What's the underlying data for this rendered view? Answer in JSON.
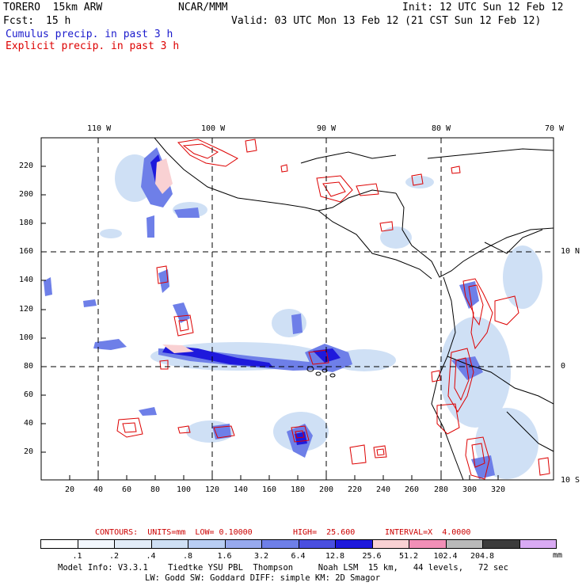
{
  "header": {
    "model": "TORERO  15km ARW",
    "center": "NCAR/MMM",
    "init": "Init: 12 UTC Sun 12 Feb 12",
    "fcst_label": "Fcst:",
    "fcst_value": "15 h",
    "valid": "Valid: 03 UTC Mon 13 Feb 12 (21 CST Sun 12 Feb 12)"
  },
  "legend": {
    "cumulus": "Cumulus precip. in past 3 h",
    "explicit": "Explicit precip. in past 3 h"
  },
  "map": {
    "lon_labels": [
      "110 W",
      "100 W",
      "90 W",
      "80 W",
      "70 W"
    ],
    "lat_labels": [
      "10 N",
      "0",
      "10 S"
    ],
    "x_ticks": [
      "20",
      "40",
      "60",
      "80",
      "100",
      "120",
      "140",
      "160",
      "180",
      "200",
      "220",
      "240",
      "260",
      "280",
      "300",
      "320"
    ],
    "y_ticks": [
      "20",
      "40",
      "60",
      "80",
      "100",
      "120",
      "140",
      "160",
      "180",
      "200",
      "220"
    ]
  },
  "contours": {
    "units": "CONTOURS:  UNITS=mm  LOW= 0.10000",
    "high": "HIGH=  25.600",
    "interval": "INTERVAL=X  4.0000"
  },
  "colorbar": {
    "labels": [
      ".1",
      ".2",
      ".4",
      ".8",
      "1.6",
      "3.2",
      "6.4",
      "12.8",
      "25.6",
      "51.2",
      "102.4",
      "204.8"
    ],
    "unit": "mm",
    "colors": [
      "#ffffff",
      "#f2f7fd",
      "#e2ecf8",
      "#cfe0f5",
      "#b8cdf3",
      "#97a9ee",
      "#6e7fe8",
      "#4a4fe0",
      "#1e19dc",
      "#f9d1d3",
      "#f28fb7",
      "#b9b9b9",
      "#3c3c3c",
      "#d9aaf3"
    ]
  },
  "model_info": {
    "line1": "Model Info: V3.3.1    Tiedtke YSU PBL  Thompson     Noah LSM  15 km,   44 levels,   72 sec",
    "line2": "LW: Godd SW: Goddard DIFF: simple KM: 2D Smagor"
  }
}
